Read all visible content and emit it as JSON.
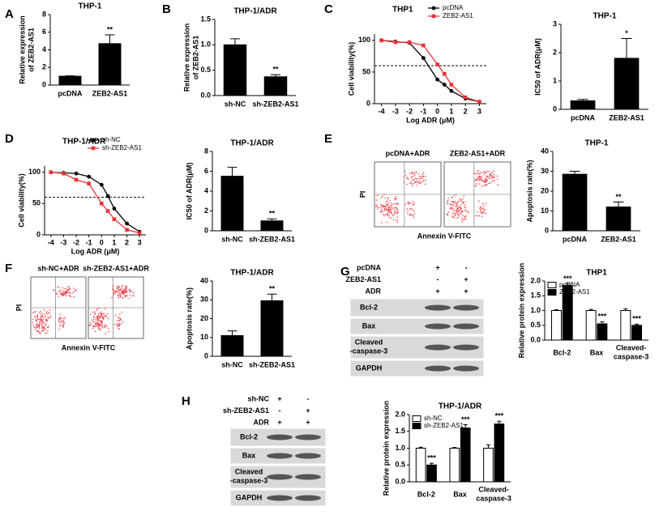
{
  "panel_labels": [
    "A",
    "B",
    "C",
    "D",
    "E",
    "F",
    "G",
    "H"
  ],
  "flow_panels": [
    {
      "conditions": [
        "pcDNA+ADR",
        "ZEB2-AS1+ADR"
      ],
      "y_label": "PI",
      "x_label": "Annexin V-FITC"
    },
    {
      "conditions": [
        "sh-NC+ADR",
        "sh-ZEB2-AS1+ADR"
      ],
      "y_label": "PI",
      "x_label": "Annexin V-FITC"
    }
  ],
  "blots": [
    {
      "rows": [
        {
          "label": "pcDNA",
          "signs": [
            "+",
            "-"
          ]
        },
        {
          "label": "ZEB2-AS1",
          "signs": [
            "-",
            "+"
          ]
        },
        {
          "label": "ADR",
          "signs": [
            "+",
            "+"
          ]
        }
      ],
      "bands": [
        "Bcl-2",
        "Bax",
        "Cleaved\n-caspase-3",
        "GAPDH"
      ]
    },
    {
      "rows": [
        {
          "label": "sh-NC",
          "signs": [
            "+",
            "-"
          ]
        },
        {
          "label": "sh-ZEB2-AS1",
          "signs": [
            "-",
            "+"
          ]
        },
        {
          "label": "ADR",
          "signs": [
            "+",
            "+"
          ]
        }
      ],
      "bands": [
        "Bcl-2",
        "Bax",
        "Cleaved\n-caspase-3",
        "GAPDH"
      ]
    }
  ],
  "chart_data": [
    {
      "type": "bar",
      "title": "THP-1",
      "ylabel": "Relative expression\nof ZEB2-AS1",
      "categories": [
        "pcDNA",
        "ZEB2-AS1"
      ],
      "values": [
        1,
        4.7
      ],
      "errors": [
        0.05,
        1.0
      ],
      "significance": [
        null,
        "**"
      ],
      "color": "#000000",
      "ylim": [
        0,
        8
      ],
      "yticks": [
        0,
        2,
        4,
        6,
        8
      ]
    },
    {
      "type": "bar",
      "title": "THP-1/ADR",
      "ylabel": "Relative expression\nof ZEB2-AS1",
      "categories": [
        "sh-NC",
        "sh-ZEB2-AS1"
      ],
      "values": [
        1.0,
        0.37
      ],
      "errors": [
        0.12,
        0.04
      ],
      "significance": [
        null,
        "**"
      ],
      "color": "#000000",
      "ylim": [
        0,
        1.5
      ],
      "yticks": [
        {
          "value": 0,
          "label": "0.0"
        },
        0.5,
        {
          "value": 1,
          "label": "1.0"
        },
        1.5
      ]
    },
    {
      "type": "line",
      "title": "THP1",
      "ylabel": "Cell viability(%)",
      "xlabel": "Log ADR (μM)",
      "x": [
        -4,
        -3,
        -2,
        -1,
        0,
        0.5,
        1,
        2,
        3
      ],
      "series": [
        {
          "name": "pcDNA",
          "color": "#000000",
          "marker": "circle",
          "values": [
            100,
            98,
            96,
            72,
            38,
            30,
            20,
            8,
            3
          ]
        },
        {
          "name": "ZEB2-AS1",
          "color": "#e8333a",
          "marker": "square",
          "values": [
            100,
            97,
            97,
            92,
            62,
            47,
            30,
            10,
            3
          ]
        }
      ],
      "reference_line": 60,
      "xlim": [
        -4.5,
        3.5
      ],
      "xticks": [
        -4,
        -3,
        -2,
        -1,
        0,
        1,
        2,
        3
      ],
      "ylim": [
        0,
        110
      ],
      "yticks": [
        0,
        50,
        100
      ],
      "legend": "upper right"
    },
    {
      "type": "bar",
      "title": "THP-1",
      "ylabel": "IC50 of ADR(μM)",
      "categories": [
        "pcDNA",
        "ZEB2-AS1"
      ],
      "values": [
        0.3,
        1.8
      ],
      "errors": [
        0.05,
        0.7
      ],
      "significance": [
        null,
        "*"
      ],
      "color": "#000000",
      "ylim": [
        0,
        3
      ],
      "yticks": [
        0,
        1,
        2,
        3
      ]
    },
    {
      "type": "line",
      "title": "THP-1/ADR",
      "ylabel": "Cell viability(%)",
      "xlabel": "Log ADR (μM)",
      "x": [
        -4,
        -3,
        -2,
        -1,
        0,
        0.5,
        1,
        2,
        3
      ],
      "series": [
        {
          "name": "sh-NC",
          "color": "#000000",
          "marker": "circle",
          "values": [
            100,
            99,
            98,
            93,
            80,
            62,
            42,
            18,
            5
          ]
        },
        {
          "name": "sh-ZEB2-AS1",
          "color": "#e8333a",
          "marker": "square",
          "values": [
            100,
            98,
            88,
            82,
            50,
            38,
            25,
            8,
            3
          ]
        }
      ],
      "reference_line": 60,
      "xlim": [
        -4.5,
        3.5
      ],
      "xticks": [
        -4,
        -3,
        -2,
        -1,
        0,
        1,
        2,
        3
      ],
      "ylim": [
        0,
        110
      ],
      "yticks": [
        0,
        50,
        100
      ],
      "legend": "upper right"
    },
    {
      "type": "bar",
      "title": "THP-1/ADR",
      "ylabel": "IC50 of ADR(μM)",
      "categories": [
        "sh-NC",
        "sh-ZEB2-AS1"
      ],
      "values": [
        5.5,
        1.0
      ],
      "errors": [
        0.9,
        0.2
      ],
      "significance": [
        null,
        "**"
      ],
      "color": "#000000",
      "ylim": [
        0,
        8
      ],
      "yticks": [
        0,
        2,
        4,
        6,
        8
      ]
    },
    {
      "type": "bar",
      "title": "THP-1",
      "ylabel": "Apoptosis rate(%)",
      "categories": [
        "pcDNA",
        "ZEB2-AS1"
      ],
      "values": [
        28.5,
        12
      ],
      "errors": [
        1.5,
        2.5
      ],
      "significance": [
        null,
        "**"
      ],
      "color": "#000000",
      "ylim": [
        0,
        40
      ],
      "yticks": [
        0,
        10,
        20,
        30,
        40
      ]
    },
    {
      "type": "bar",
      "title": "THP-1/ADR",
      "ylabel": "Apoptosis rate(%)",
      "categories": [
        "sh-NC",
        "sh-ZEB2-AS1"
      ],
      "values": [
        11,
        29.5
      ],
      "errors": [
        2.5,
        3.5
      ],
      "significance": [
        null,
        "**"
      ],
      "color": "#000000",
      "ylim": [
        0,
        40
      ],
      "yticks": [
        0,
        10,
        20,
        30,
        40
      ]
    },
    {
      "type": "grouped_bar",
      "title": "THP1",
      "ylabel": "Relative protein expression",
      "categories": [
        "Bcl-2",
        "Bax",
        "Cleaved-\ncaspase-3"
      ],
      "series": [
        {
          "name": "pcDNA",
          "color": "#ffffff",
          "values": [
            1,
            1,
            1
          ],
          "errors": [
            0.03,
            0.04,
            0.06
          ],
          "significance": [
            null,
            null,
            null
          ]
        },
        {
          "name": "ZEB2-AS1",
          "color": "#000000",
          "values": [
            1.85,
            0.55,
            0.5
          ],
          "errors": [
            0.05,
            0.07,
            0.04
          ],
          "significance": [
            "***",
            "***",
            "***"
          ]
        }
      ],
      "ylim": [
        0,
        2
      ],
      "yticks": [
        {
          "value": 0,
          "label": "0.0"
        },
        0.5,
        {
          "value": 1,
          "label": "1.0"
        },
        1.5,
        {
          "value": 2,
          "label": "2.0"
        }
      ],
      "legend": "upper left"
    },
    {
      "type": "grouped_bar",
      "title": "THP-1/ADR",
      "ylabel": "Relative protein expression",
      "categories": [
        "Bcl-2",
        "Bax",
        "Cleaved-\ncaspase-3"
      ],
      "series": [
        {
          "name": "sh-NC",
          "color": "#ffffff",
          "values": [
            1,
            1,
            1
          ],
          "errors": [
            0.03,
            0.02,
            0.1
          ],
          "significance": [
            null,
            null,
            null
          ]
        },
        {
          "name": "sh-ZEB2-AS1",
          "color": "#000000",
          "values": [
            0.5,
            1.6,
            1.72
          ],
          "errors": [
            0.05,
            0.1,
            0.08
          ],
          "significance": [
            "***",
            "***",
            "***"
          ]
        }
      ],
      "ylim": [
        0,
        2
      ],
      "yticks": [
        {
          "value": 0,
          "label": "0.0"
        },
        0.5,
        {
          "value": 1,
          "label": "1.0"
        },
        1.5,
        {
          "value": 2,
          "label": "2.0"
        }
      ],
      "legend": "upper left"
    }
  ]
}
